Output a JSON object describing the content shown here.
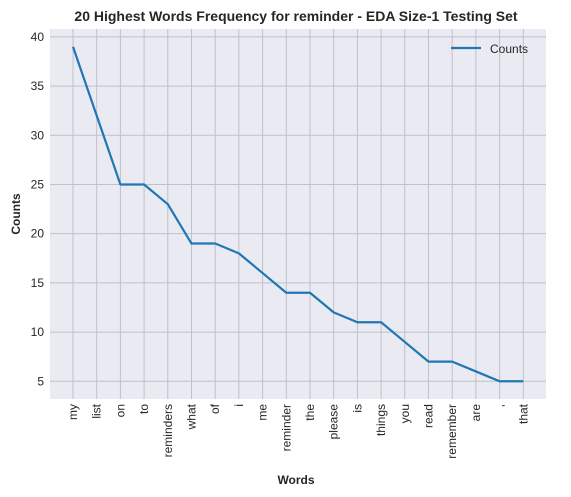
{
  "chart_data": {
    "type": "line",
    "title": "20 Highest Words Frequency for reminder - EDA Size-1 Testing Set",
    "xlabel": "Words",
    "ylabel": "Counts",
    "ylim": [
      3.2,
      40.8
    ],
    "yticks": [
      5,
      10,
      15,
      20,
      25,
      30,
      35,
      40
    ],
    "grid": true,
    "legend_position": "top-right",
    "categories": [
      "my",
      "list",
      "on",
      "to",
      "reminders",
      "what",
      "of",
      "i",
      "me",
      "reminder",
      "the",
      "please",
      "is",
      "things",
      "you",
      "read",
      "remember",
      "are",
      ",",
      "that"
    ],
    "series": [
      {
        "name": "Counts",
        "color": "#1f77b4",
        "values": [
          39,
          32,
          25,
          25,
          23,
          19,
          19,
          18,
          16,
          14,
          14,
          12,
          11,
          11,
          9,
          7,
          7,
          6,
          5,
          5
        ]
      }
    ]
  }
}
